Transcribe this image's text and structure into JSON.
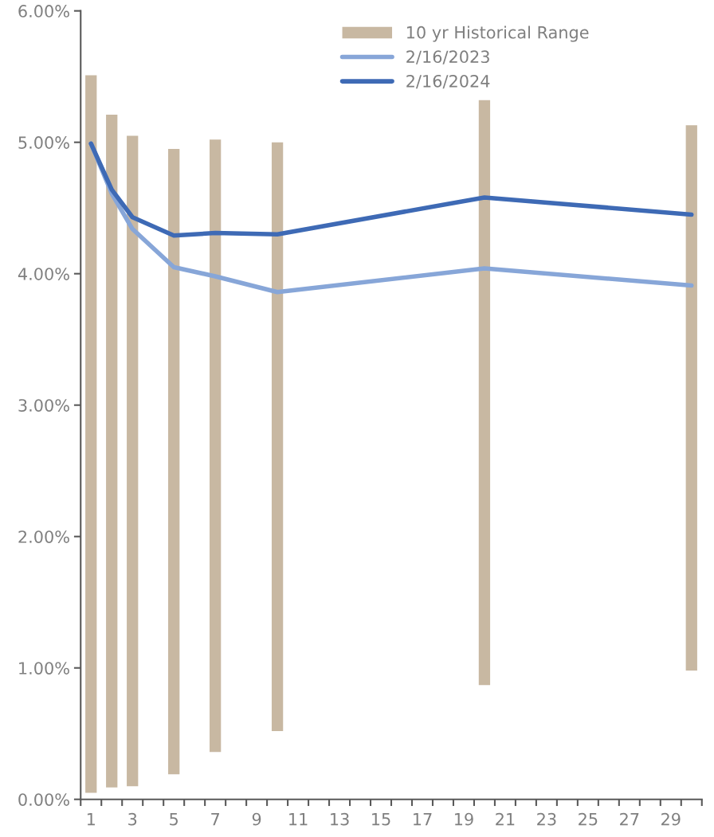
{
  "chart_data": {
    "type": "line",
    "x": [
      1,
      2,
      3,
      5,
      7,
      10,
      20,
      30
    ],
    "series": [
      {
        "name": "10 yr Historical Range",
        "type": "bar",
        "color": "#c8b8a2",
        "base": [
          0.05,
          0.09,
          0.1,
          0.19,
          0.36,
          0.52,
          0.87,
          0.98
        ],
        "values": [
          5.46,
          5.12,
          4.95,
          4.76,
          4.66,
          4.48,
          4.45,
          4.15
        ]
      },
      {
        "name": "2/16/2023",
        "color": "#87a6d8",
        "values": [
          4.99,
          4.61,
          4.34,
          4.05,
          3.98,
          3.86,
          4.04,
          3.91
        ]
      },
      {
        "name": "2/16/2024",
        "color": "#3e6ab5",
        "values": [
          4.99,
          4.64,
          4.43,
          4.29,
          4.31,
          4.3,
          4.58,
          4.45
        ]
      }
    ],
    "xlim": [
      0.5,
      30.5
    ],
    "xticks": [
      {
        "value": 0.5,
        "label": null
      },
      {
        "value": 1,
        "label": "1"
      },
      {
        "value": 1.5,
        "label": null
      },
      {
        "value": 2.5,
        "label": null
      },
      {
        "value": 3,
        "label": "3"
      },
      {
        "value": 3.5,
        "label": null
      },
      {
        "value": 4.5,
        "label": null
      },
      {
        "value": 5,
        "label": "5"
      },
      {
        "value": 5.5,
        "label": null
      },
      {
        "value": 6.5,
        "label": null
      },
      {
        "value": 7,
        "label": "7"
      },
      {
        "value": 7.5,
        "label": null
      },
      {
        "value": 8.5,
        "label": null
      },
      {
        "value": 9,
        "label": "9"
      },
      {
        "value": 9.5,
        "label": null
      },
      {
        "value": 10.5,
        "label": null
      },
      {
        "value": 11,
        "label": "11"
      },
      {
        "value": 11.5,
        "label": null
      },
      {
        "value": 12.5,
        "label": null
      },
      {
        "value": 13,
        "label": "13"
      },
      {
        "value": 13.5,
        "label": null
      },
      {
        "value": 14.5,
        "label": null
      },
      {
        "value": 15,
        "label": "15"
      },
      {
        "value": 15.5,
        "label": null
      },
      {
        "value": 16.5,
        "label": null
      },
      {
        "value": 17,
        "label": "17"
      },
      {
        "value": 17.5,
        "label": null
      },
      {
        "value": 18.5,
        "label": null
      },
      {
        "value": 19,
        "label": "19"
      },
      {
        "value": 19.5,
        "label": null
      },
      {
        "value": 20.5,
        "label": null
      },
      {
        "value": 21,
        "label": "21"
      },
      {
        "value": 21.5,
        "label": null
      },
      {
        "value": 22.5,
        "label": null
      },
      {
        "value": 23,
        "label": "23"
      },
      {
        "value": 23.5,
        "label": null
      },
      {
        "value": 24.5,
        "label": null
      },
      {
        "value": 25,
        "label": "25"
      },
      {
        "value": 25.5,
        "label": null
      },
      {
        "value": 26.5,
        "label": null
      },
      {
        "value": 27,
        "label": "27"
      },
      {
        "value": 27.5,
        "label": null
      },
      {
        "value": 28.5,
        "label": null
      },
      {
        "value": 29,
        "label": "29"
      },
      {
        "value": 29.5,
        "label": null
      },
      {
        "value": 30.5,
        "label": null
      }
    ],
    "ylim": [
      0,
      6
    ],
    "yticks": [
      {
        "value": 0,
        "label": "0.00%"
      },
      {
        "value": 1,
        "label": "1.00%"
      },
      {
        "value": 2,
        "label": "2.00%"
      },
      {
        "value": 3,
        "label": "3.00%"
      },
      {
        "value": 4,
        "label": "4.00%"
      },
      {
        "value": 5,
        "label": "5.00%"
      },
      {
        "value": 6,
        "label": "6.00%"
      }
    ],
    "grid": false,
    "legend": "top",
    "marker": "none",
    "line_style": "solid"
  }
}
